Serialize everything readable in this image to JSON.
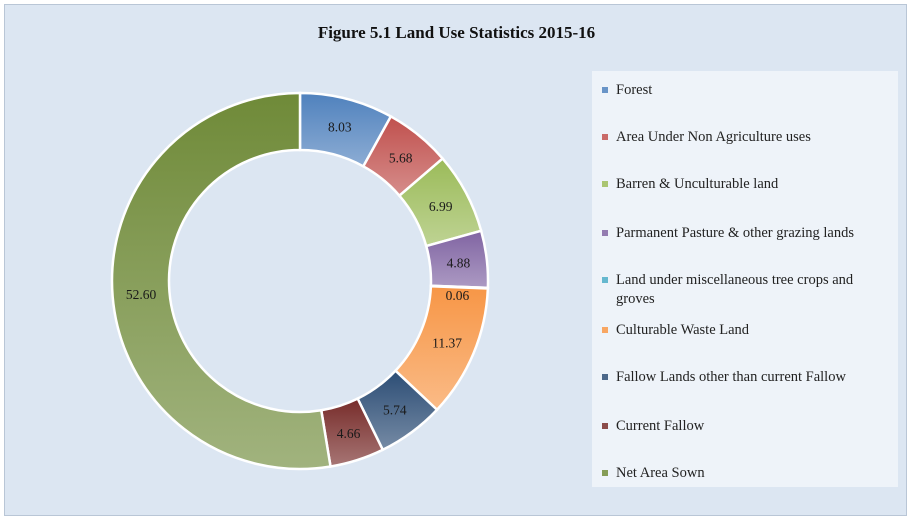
{
  "chart_data": {
    "type": "pie",
    "variant": "donut",
    "title": "Figure  5.1 Land  Use Statistics 2015-16",
    "legend_position": "right",
    "categories": [
      "Forest",
      "Area Under Non Agriculture uses",
      "Barren & Unculturable land",
      "Parmanent Pasture & other grazing lands",
      "Land under miscellaneous tree crops and groves",
      "Culturable Waste Land",
      "Fallow Lands other than current Fallow",
      "Current Fallow",
      "Net Area Sown"
    ],
    "values": [
      8.03,
      5.68,
      6.99,
      4.88,
      0.06,
      11.37,
      5.74,
      4.66,
      52.6
    ],
    "labels": [
      "8.03",
      "5.68",
      "6.99",
      "4.88",
      "0.06",
      "11.37",
      "5.74",
      "4.66",
      "52.60"
    ],
    "colors": [
      "#4f81bd",
      "#c0504d",
      "#9bbb59",
      "#8064a2",
      "#4bacc6",
      "#f79646",
      "#2c4d75",
      "#772c2a",
      "#6f8a38"
    ]
  }
}
